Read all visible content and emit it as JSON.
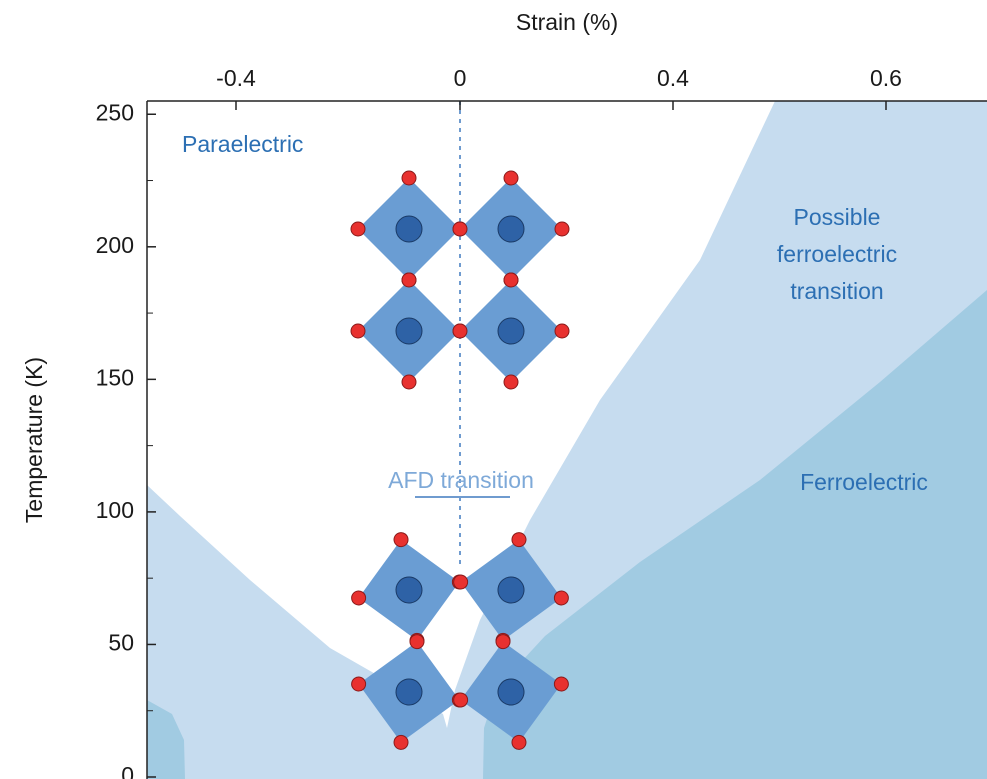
{
  "chart_data": {
    "type": "phase-diagram",
    "xlabel": "Strain (%)",
    "ylabel": "Temperature (K)",
    "xlim": [
      -0.56,
      0.7
    ],
    "xticks": [
      -0.4,
      0,
      0.4,
      0.6
    ],
    "ylim": [
      0,
      255
    ],
    "yticks": [
      0,
      50,
      100,
      150,
      200,
      250
    ],
    "yminor_ticks": [
      25,
      75,
      125,
      175,
      225
    ],
    "annotations": {
      "paraelectric": "Paraelectric",
      "possible": [
        "Possible",
        "ferroelectric",
        "transition"
      ],
      "ferroelectric": "Ferroelectric",
      "afd": "AFD transition"
    }
  }
}
